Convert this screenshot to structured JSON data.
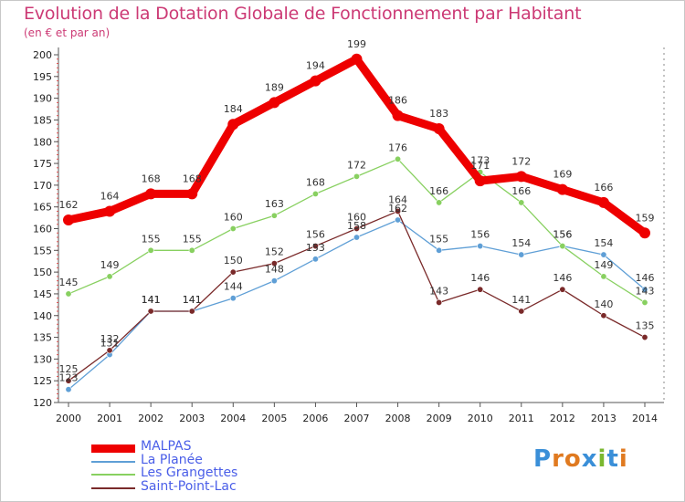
{
  "header": {
    "title": "Evolution de la Dotation Globale de Fonctionnement par Habitant",
    "subtitle": "(en € et par an)"
  },
  "logo": {
    "text": "Proxiti",
    "colors": [
      "#3a8fd8",
      "#e07a20",
      "#e07a20",
      "#3a8fd8",
      "#7ab830",
      "#3a8fd8",
      "#e07a20"
    ]
  },
  "chart_data": {
    "type": "line",
    "x": [
      2000,
      2001,
      2002,
      2003,
      2004,
      2005,
      2006,
      2007,
      2008,
      2009,
      2010,
      2011,
      2012,
      2013,
      2014
    ],
    "ylim": [
      120,
      200
    ],
    "yticks": [
      120,
      125,
      130,
      135,
      140,
      145,
      150,
      155,
      160,
      165,
      170,
      175,
      180,
      185,
      190,
      195,
      200
    ],
    "grid": false,
    "legend_position": "bottom-left",
    "series": [
      {
        "name": "MALPAS",
        "color": "#ee0000",
        "values": [
          162,
          164,
          168,
          168,
          184,
          189,
          194,
          199,
          186,
          183,
          171,
          172,
          169,
          166,
          159
        ],
        "labels": [
          "162",
          "164",
          "168",
          "168",
          "184",
          "189",
          "194",
          "199",
          "186",
          "183",
          "171",
          "172",
          "169",
          "166",
          "159"
        ]
      },
      {
        "name": "La Planée",
        "color": "#5f9fd6",
        "values": [
          123,
          131,
          141,
          141,
          144,
          148,
          153,
          158,
          162,
          155,
          156,
          154,
          156,
          154,
          146
        ],
        "labels": [
          "123",
          "131",
          "141",
          "141",
          "144",
          "148",
          "153",
          "158",
          "162",
          "155",
          "156",
          "154",
          "156",
          "154",
          "146"
        ]
      },
      {
        "name": "Les Grangettes",
        "color": "#88d060",
        "values": [
          145,
          149,
          155,
          155,
          160,
          163,
          168,
          172,
          176,
          166,
          173,
          166,
          156,
          149,
          143
        ],
        "labels": [
          "145",
          "149",
          "155",
          "155",
          "160",
          "163",
          "168",
          "172",
          "176",
          "166",
          "173",
          "166",
          "156",
          "149",
          "143"
        ]
      },
      {
        "name": "Saint-Point-Lac",
        "color": "#7a2a2a",
        "values": [
          125,
          132,
          141,
          141,
          150,
          152,
          156,
          160,
          164,
          143,
          146,
          141,
          146,
          140,
          135
        ],
        "labels": [
          "125",
          "132",
          "141",
          "141",
          "150",
          "152",
          "156",
          "160",
          "164",
          "143",
          "146",
          "141",
          "146",
          "140",
          "135"
        ]
      }
    ]
  }
}
